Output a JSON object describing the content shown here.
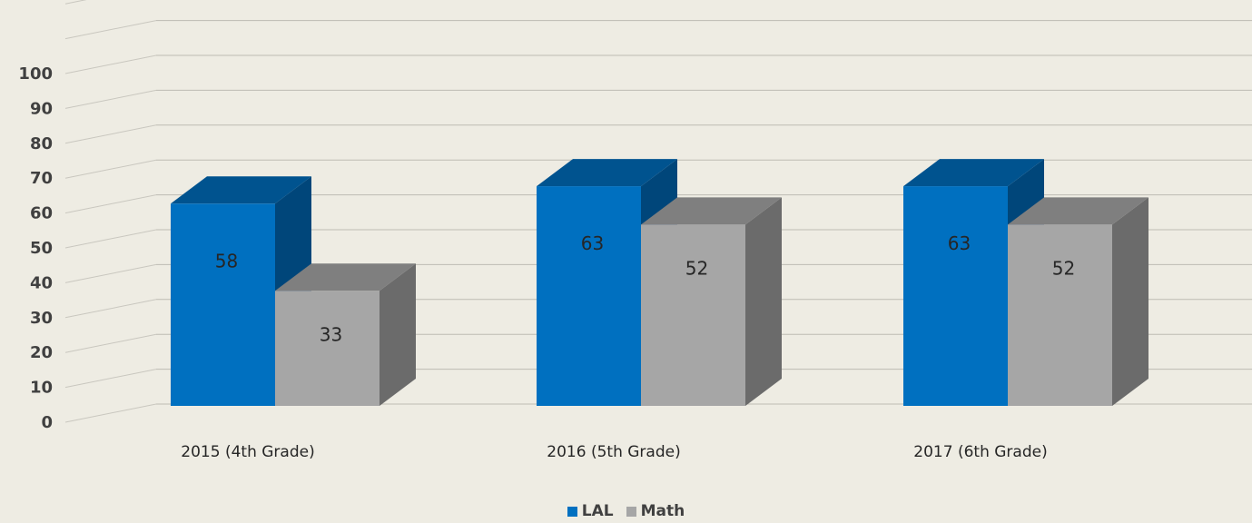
{
  "chart_data": {
    "type": "bar",
    "categories": [
      "2015 (4th Grade)",
      "2016 (5th Grade)",
      "2017 (6th Grade)"
    ],
    "series": [
      {
        "name": "LAL",
        "values": [
          58,
          63,
          63
        ],
        "color": "#0070c0",
        "top_color": "#00538f",
        "side_color": "#00467a"
      },
      {
        "name": "Math",
        "values": [
          33,
          52,
          52
        ],
        "color": "#a6a6a6",
        "top_color": "#7f7f7f",
        "side_color": "#6b6b6b"
      }
    ],
    "y_ticks": [
      "0",
      "10",
      "20",
      "30",
      "40",
      "50",
      "60",
      "70",
      "80",
      "90",
      "100"
    ],
    "ylim": [
      0,
      120
    ],
    "grid": true,
    "style": "3d-clustered-column",
    "legend_position": "bottom-center",
    "title": "",
    "xlabel": "",
    "ylabel": ""
  }
}
